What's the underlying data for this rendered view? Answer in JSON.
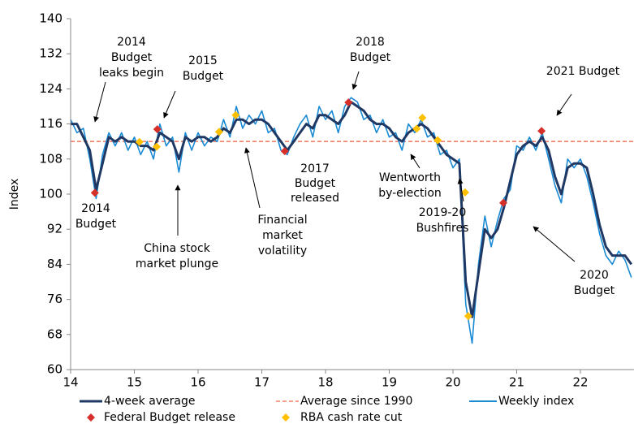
{
  "chart_data": {
    "type": "line",
    "ylabel": "Index",
    "xlim": [
      14,
      22.84
    ],
    "xticks": [
      14,
      15,
      16,
      17,
      18,
      19,
      20,
      21,
      22
    ],
    "ylim": [
      60,
      140
    ],
    "yticks": [
      60,
      68,
      76,
      84,
      92,
      100,
      108,
      116,
      124,
      132,
      140
    ],
    "grid": false,
    "x": [
      14.0,
      14.1,
      14.2,
      14.3,
      14.4,
      14.5,
      14.6,
      14.7,
      14.8,
      14.9,
      15.0,
      15.1,
      15.2,
      15.3,
      15.4,
      15.5,
      15.6,
      15.7,
      15.8,
      15.9,
      16.0,
      16.1,
      16.2,
      16.3,
      16.4,
      16.5,
      16.6,
      16.7,
      16.8,
      16.9,
      17.0,
      17.1,
      17.2,
      17.3,
      17.4,
      17.5,
      17.6,
      17.7,
      17.8,
      17.9,
      18.0,
      18.1,
      18.2,
      18.3,
      18.4,
      18.5,
      18.6,
      18.7,
      18.8,
      18.9,
      19.0,
      19.1,
      19.2,
      19.3,
      19.4,
      19.5,
      19.6,
      19.7,
      19.8,
      19.9,
      20.0,
      20.1,
      20.2,
      20.3,
      20.4,
      20.5,
      20.6,
      20.7,
      20.8,
      20.9,
      21.0,
      21.1,
      21.2,
      21.3,
      21.4,
      21.5,
      21.6,
      21.7,
      21.8,
      21.9,
      22.0,
      22.1,
      22.2,
      22.3,
      22.4,
      22.5,
      22.6,
      22.7,
      22.8
    ],
    "series": [
      {
        "name": "4-week average",
        "color": "#1f3864",
        "width": 3,
        "values": [
          116,
          116,
          113,
          110,
          101,
          107,
          113,
          112,
          113,
          112,
          112,
          111,
          111,
          110,
          114,
          113,
          112,
          108,
          113,
          112,
          113,
          113,
          112,
          113,
          115,
          114,
          117,
          117,
          116,
          117,
          117,
          116,
          114,
          112,
          110,
          112,
          114,
          116,
          115,
          118,
          118,
          117,
          116,
          118,
          121,
          120,
          119,
          117,
          116,
          116,
          115,
          113,
          112,
          114,
          115,
          116,
          115,
          113,
          111,
          109,
          108,
          107,
          80,
          72,
          82,
          92,
          90,
          92,
          97,
          103,
          109,
          111,
          112,
          111,
          113,
          110,
          104,
          100,
          106,
          107,
          107,
          106,
          100,
          93,
          88,
          86,
          86,
          86,
          84
        ]
      },
      {
        "name": "Weekly index",
        "color": "#1a8ad4",
        "width": 1.6,
        "values": [
          117,
          114,
          115,
          108,
          99,
          109,
          114,
          111,
          114,
          110,
          113,
          109,
          112,
          108,
          116,
          111,
          113,
          105,
          114,
          110,
          114,
          111,
          113,
          112,
          117,
          113,
          120,
          115,
          118,
          116,
          119,
          114,
          115,
          110,
          109,
          113,
          116,
          118,
          113,
          120,
          117,
          119,
          114,
          120,
          122,
          121,
          117,
          118,
          114,
          117,
          113,
          114,
          110,
          116,
          114,
          117,
          113,
          114,
          109,
          110,
          106,
          108,
          75,
          66,
          84,
          95,
          88,
          94,
          99,
          101,
          111,
          110,
          113,
          110,
          114,
          108,
          102,
          98,
          108,
          106,
          108,
          104,
          98,
          91,
          86,
          84,
          87,
          85,
          81
        ]
      }
    ],
    "reference_line": {
      "name": "Average since 1990",
      "value": 112,
      "color": "#f4826b"
    },
    "markers": [
      {
        "name": "Federal Budget release",
        "color": "#d7302a",
        "x": [
          14.38,
          15.36,
          17.36,
          18.36,
          20.79,
          21.39
        ],
        "values": [
          100.3,
          114.8,
          109.8,
          120.9,
          98,
          114.4
        ]
      },
      {
        "name": "RBA cash rate cut",
        "color": "#ffc000",
        "x": [
          15.08,
          15.35,
          16.33,
          16.59,
          19.43,
          19.52,
          19.76,
          20.19,
          20.24
        ],
        "values": [
          111.9,
          110.8,
          114.2,
          118,
          114.9,
          117.4,
          112.3,
          100.4,
          72.2
        ]
      }
    ],
    "annotations": [
      {
        "text": [
          "2014",
          "Budget",
          "leaks begin"
        ]
      },
      {
        "text": [
          "2015",
          "Budget"
        ]
      },
      {
        "text": [
          "2018",
          "Budget"
        ]
      },
      {
        "text": [
          "2021 Budget"
        ]
      },
      {
        "text": [
          "2014",
          "Budget"
        ]
      },
      {
        "text": [
          "China stock",
          "market plunge"
        ]
      },
      {
        "text": [
          "Financial",
          "market",
          "volatility"
        ]
      },
      {
        "text": [
          "2017",
          "Budget",
          "released"
        ]
      },
      {
        "text": [
          "Wentworth",
          "by-election"
        ]
      },
      {
        "text": [
          "2019-20",
          "Bushfires"
        ]
      },
      {
        "text": [
          "2020",
          "Budget"
        ]
      }
    ]
  }
}
